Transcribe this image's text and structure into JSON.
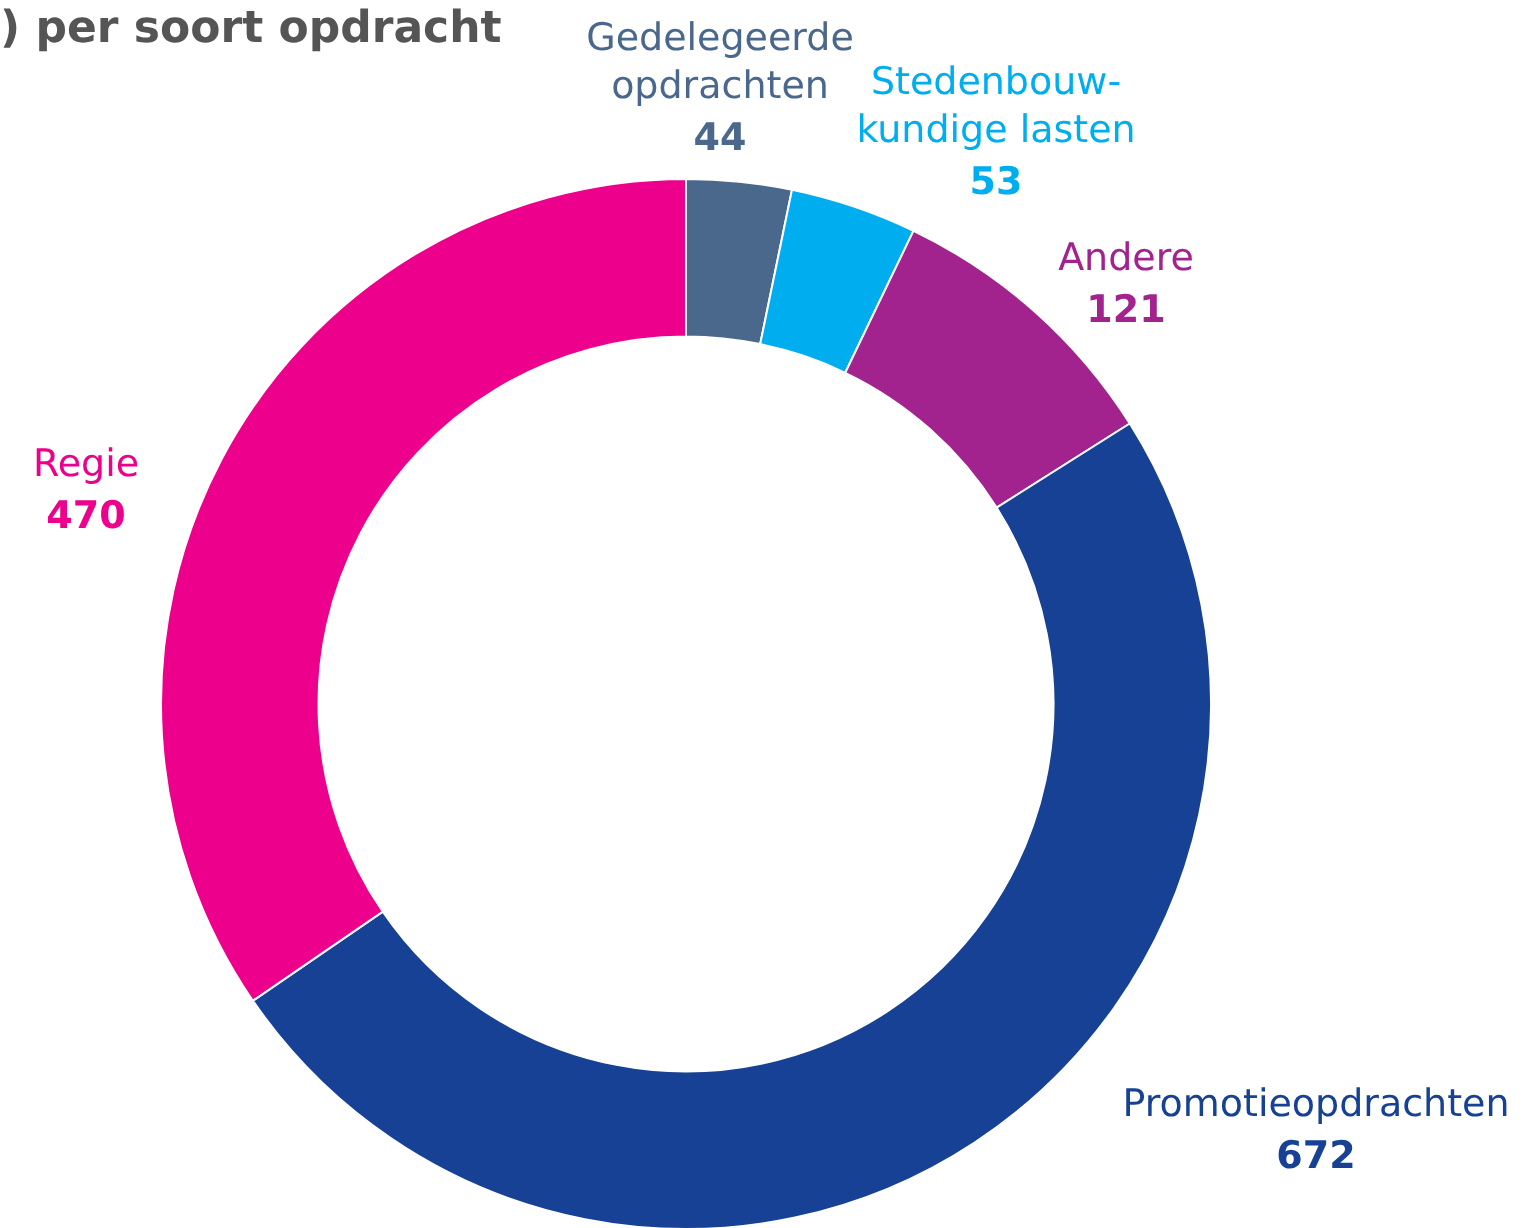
{
  "chart_data": {
    "type": "donut",
    "title": ") per soort opdracht",
    "categories": [
      "Gedelegeerde\nopdrachten",
      "Stedenbouw-\nkundige lasten",
      "Andere",
      "Promotieopdrachten",
      "Regie"
    ],
    "values": [
      44,
      53,
      121,
      672,
      470
    ],
    "colors": [
      "#4a678c",
      "#00aeef",
      "#a3238e",
      "#164194",
      "#ec008c"
    ],
    "data_labels": true,
    "legend": false
  }
}
